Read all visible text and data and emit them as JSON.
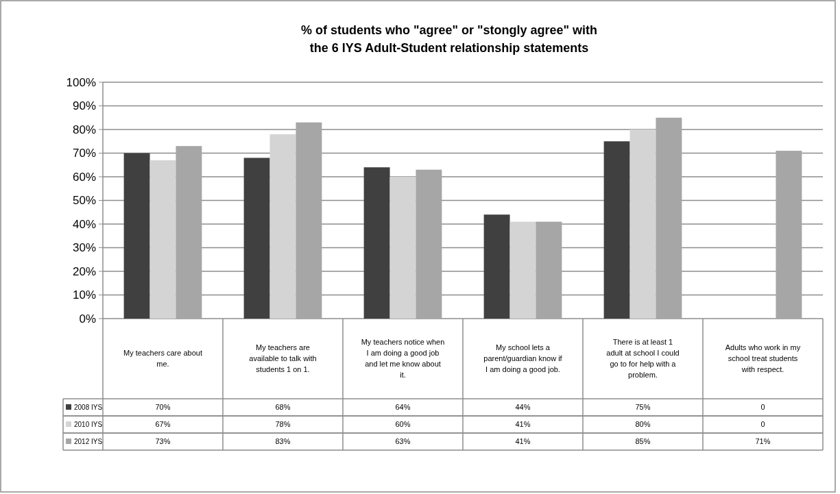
{
  "chart_data": {
    "type": "bar",
    "title": "% of students who \"agree\" or \"stongly agree\" with the 6 IYS Adult-Student relationship statements",
    "categories": [
      "My teachers care about me.",
      "My teachers are available to talk with students 1 on 1.",
      "My teachers notice when I am doing a good job and let me know about it.",
      "My school lets a parent/guardian know if I am doing a good job.",
      "There is at least 1 adult at school I could go to for help with a problem.",
      "Adults who work in my school treat students with respect."
    ],
    "series": [
      {
        "name": "2008 IYS",
        "color": "#404040",
        "values": [
          70,
          68,
          64,
          44,
          75,
          0
        ],
        "value_labels": [
          "70%",
          "68%",
          "64%",
          "44%",
          "75%",
          "0"
        ]
      },
      {
        "name": "2010 IYS",
        "color": "#d4d4d4",
        "values": [
          67,
          78,
          60,
          41,
          80,
          0
        ],
        "value_labels": [
          "67%",
          "78%",
          "60%",
          "41%",
          "80%",
          "0"
        ]
      },
      {
        "name": "2012 IYS",
        "color": "#a6a6a6",
        "values": [
          73,
          83,
          63,
          41,
          85,
          71
        ],
        "value_labels": [
          "73%",
          "83%",
          "63%",
          "41%",
          "85%",
          "71%"
        ]
      }
    ],
    "ylim": [
      0,
      100
    ],
    "yticks": [
      {
        "value": 0,
        "label": "0%"
      },
      {
        "value": 10,
        "label": "10%"
      },
      {
        "value": 20,
        "label": "20%"
      },
      {
        "value": 30,
        "label": "30%"
      },
      {
        "value": 40,
        "label": "40%"
      },
      {
        "value": 50,
        "label": "50%"
      },
      {
        "value": 60,
        "label": "60%"
      },
      {
        "value": 70,
        "label": "70%"
      },
      {
        "value": 80,
        "label": "80%"
      },
      {
        "value": 90,
        "label": "90%"
      },
      {
        "value": 100,
        "label": "100%"
      }
    ],
    "grid": "y",
    "legend": "bottom"
  }
}
